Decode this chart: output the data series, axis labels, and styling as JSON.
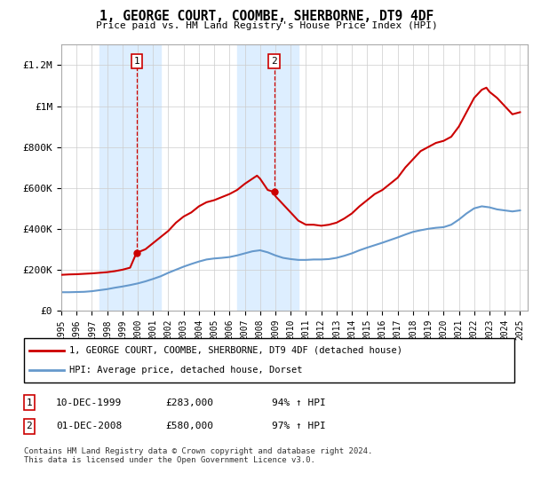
{
  "title": "1, GEORGE COURT, COOMBE, SHERBORNE, DT9 4DF",
  "subtitle": "Price paid vs. HM Land Registry's House Price Index (HPI)",
  "ylabel_ticks": [
    "£0",
    "£200K",
    "£400K",
    "£600K",
    "£800K",
    "£1M",
    "£1.2M"
  ],
  "ytick_vals": [
    0,
    200000,
    400000,
    600000,
    800000,
    1000000,
    1200000
  ],
  "ylim": [
    0,
    1300000
  ],
  "xlim_start": 1995.0,
  "xlim_end": 2025.5,
  "legend_line1": "1, GEORGE COURT, COOMBE, SHERBORNE, DT9 4DF (detached house)",
  "legend_line2": "HPI: Average price, detached house, Dorset",
  "sale1_label": "1",
  "sale1_date": "10-DEC-1999",
  "sale1_price": "£283,000",
  "sale1_hpi": "94% ↑ HPI",
  "sale1_x": 1999.92,
  "sale1_y": 283000,
  "sale2_label": "2",
  "sale2_date": "01-DEC-2008",
  "sale2_price": "£580,000",
  "sale2_hpi": "97% ↑ HPI",
  "sale2_x": 2008.92,
  "sale2_y": 580000,
  "shade1_x_start": 1997.5,
  "shade1_x_end": 2001.5,
  "shade2_x_start": 2006.5,
  "shade2_x_end": 2010.5,
  "red_color": "#CC0000",
  "blue_color": "#6699CC",
  "shade_color": "#DDEEFF",
  "footnote": "Contains HM Land Registry data © Crown copyright and database right 2024.\nThis data is licensed under the Open Government Licence v3.0.",
  "red_line_data_x": [
    1995.0,
    1995.5,
    1996.0,
    1996.5,
    1997.0,
    1997.5,
    1998.0,
    1998.5,
    1999.0,
    1999.5,
    1999.92,
    2000.0,
    2000.5,
    2001.0,
    2001.5,
    2002.0,
    2002.5,
    2003.0,
    2003.5,
    2004.0,
    2004.5,
    2005.0,
    2005.5,
    2006.0,
    2006.5,
    2007.0,
    2007.5,
    2007.8,
    2008.0,
    2008.5,
    2008.92,
    2009.0,
    2009.5,
    2010.0,
    2010.5,
    2011.0,
    2011.5,
    2012.0,
    2012.5,
    2013.0,
    2013.5,
    2014.0,
    2014.5,
    2015.0,
    2015.5,
    2016.0,
    2016.5,
    2017.0,
    2017.5,
    2018.0,
    2018.5,
    2019.0,
    2019.5,
    2020.0,
    2020.5,
    2021.0,
    2021.5,
    2022.0,
    2022.5,
    2022.8,
    2023.0,
    2023.5,
    2024.0,
    2024.5,
    2025.0
  ],
  "red_line_data_y": [
    175000,
    177000,
    178000,
    180000,
    182000,
    185000,
    188000,
    193000,
    200000,
    210000,
    283000,
    285000,
    300000,
    330000,
    360000,
    390000,
    430000,
    460000,
    480000,
    510000,
    530000,
    540000,
    555000,
    570000,
    590000,
    620000,
    645000,
    660000,
    645000,
    590000,
    580000,
    560000,
    520000,
    480000,
    440000,
    420000,
    420000,
    415000,
    420000,
    430000,
    450000,
    475000,
    510000,
    540000,
    570000,
    590000,
    620000,
    650000,
    700000,
    740000,
    780000,
    800000,
    820000,
    830000,
    850000,
    900000,
    970000,
    1040000,
    1080000,
    1090000,
    1070000,
    1040000,
    1000000,
    960000,
    970000
  ],
  "blue_line_data_x": [
    1995.0,
    1995.5,
    1996.0,
    1996.5,
    1997.0,
    1997.5,
    1998.0,
    1998.5,
    1999.0,
    1999.5,
    2000.0,
    2000.5,
    2001.0,
    2001.5,
    2002.0,
    2002.5,
    2003.0,
    2003.5,
    2004.0,
    2004.5,
    2005.0,
    2005.5,
    2006.0,
    2006.5,
    2007.0,
    2007.5,
    2008.0,
    2008.5,
    2009.0,
    2009.5,
    2010.0,
    2010.5,
    2011.0,
    2011.5,
    2012.0,
    2012.5,
    2013.0,
    2013.5,
    2014.0,
    2014.5,
    2015.0,
    2015.5,
    2016.0,
    2016.5,
    2017.0,
    2017.5,
    2018.0,
    2018.5,
    2019.0,
    2019.5,
    2020.0,
    2020.5,
    2021.0,
    2021.5,
    2022.0,
    2022.5,
    2023.0,
    2023.5,
    2024.0,
    2024.5,
    2025.0
  ],
  "blue_line_data_y": [
    90000,
    90000,
    91000,
    92000,
    95000,
    100000,
    105000,
    112000,
    118000,
    125000,
    133000,
    143000,
    155000,
    168000,
    185000,
    200000,
    215000,
    228000,
    240000,
    250000,
    255000,
    258000,
    262000,
    270000,
    280000,
    290000,
    295000,
    285000,
    270000,
    258000,
    252000,
    248000,
    248000,
    250000,
    250000,
    252000,
    258000,
    268000,
    280000,
    295000,
    308000,
    320000,
    332000,
    345000,
    358000,
    372000,
    385000,
    393000,
    400000,
    405000,
    408000,
    420000,
    445000,
    475000,
    500000,
    510000,
    505000,
    495000,
    490000,
    485000,
    490000
  ]
}
